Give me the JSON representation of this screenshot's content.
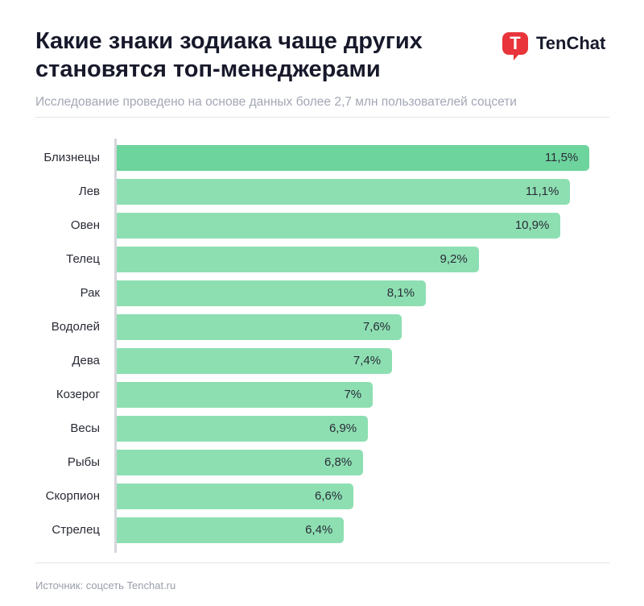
{
  "header": {
    "title": "Какие знаки зодиака чаще других становятся топ-менеджерами",
    "subtitle": "Исследование проведено на основе данных более 2,7 млн пользователей соцсети",
    "logo_text": "TenChat",
    "logo_letter": "T"
  },
  "footer": {
    "source": "Источник: соцсеть Tenchat.ru"
  },
  "colors": {
    "highlight": "#6dd49d",
    "bar": "#8ddfb2",
    "logo": "#e8343a"
  },
  "chart_data": {
    "type": "bar",
    "orientation": "horizontal",
    "categories": [
      "Близнецы",
      "Лев",
      "Овен",
      "Телец",
      "Рак",
      "Водолей",
      "Дева",
      "Козерог",
      "Весы",
      "Рыбы",
      "Скорпион",
      "Стрелец"
    ],
    "values": [
      11.5,
      11.1,
      10.9,
      9.2,
      8.1,
      7.6,
      7.4,
      7,
      6.9,
      6.8,
      6.6,
      6.4
    ],
    "labels": [
      "11,5%",
      "11,1%",
      "10,9%",
      "9,2%",
      "8,1%",
      "7,6%",
      "7,4%",
      "7%",
      "6,9%",
      "6,8%",
      "6,6%",
      "6,4%"
    ],
    "unit": "%",
    "grid": false
  }
}
